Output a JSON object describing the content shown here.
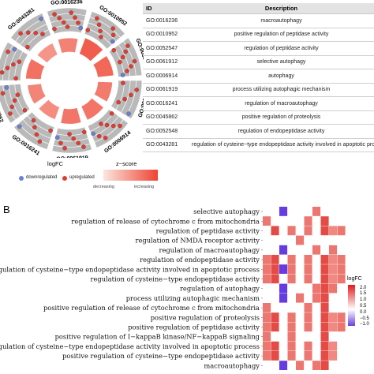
{
  "panel_b_label": "B",
  "colors": {
    "up": "#e8392e",
    "down": "#6a7fd8",
    "table_header": "#e3e3e3",
    "z_low": "#fbe6df",
    "z_high": "#ee4433",
    "heat_high": "#e31a1c",
    "heat_low": "#6a3fe0"
  },
  "table": {
    "headers": [
      "ID",
      "Description"
    ],
    "rows": [
      [
        "GO:0016236",
        "macroautophagy"
      ],
      [
        "GO:0010952",
        "positive regulation of peptidase activity"
      ],
      [
        "GO:0052547",
        "regulation of peptidase activity"
      ],
      [
        "GO:0061912",
        "selective autophagy"
      ],
      [
        "GO:0006914",
        "autophagy"
      ],
      [
        "GO:0061919",
        "process utilizing autophagic mechanism"
      ],
      [
        "GO:0016241",
        "regulation of macroautophagy"
      ],
      [
        "GO:0045862",
        "positive regulation of proteolysis"
      ],
      [
        "GO:0052548",
        "regulation of endopeptidase activity"
      ],
      [
        "GO:0043281",
        "regulation of cysteine−type endopeptidase activity involved in apoptotic process"
      ]
    ]
  },
  "legend": {
    "logfc_title": "logFC",
    "down_label": "downregulated",
    "up_label": "upregulated",
    "z_title": "z−score",
    "z_low_label": "decreasing",
    "z_high_label": "increasing"
  },
  "chart_data": [
    {
      "type": "circular_bar",
      "sectors": [
        {
          "id": "GO:0016236",
          "zscore": 0.62,
          "genes_up": 8,
          "genes_down": 1
        },
        {
          "id": "GO:0010952",
          "zscore": 0.85,
          "genes_up": 7,
          "genes_down": 1
        },
        {
          "id": "GO:0052547",
          "zscore": 0.78,
          "genes_up": 7,
          "genes_down": 2
        },
        {
          "id": "GO:0061912",
          "zscore": 0.66,
          "genes_up": 5,
          "genes_down": 1
        },
        {
          "id": "GO:0006914",
          "zscore": 0.7,
          "genes_up": 7,
          "genes_down": 1
        },
        {
          "id": "GO:0061919",
          "zscore": 0.7,
          "genes_up": 7,
          "genes_down": 1
        },
        {
          "id": "GO:0016241",
          "zscore": 0.55,
          "genes_up": 5,
          "genes_down": 1
        },
        {
          "id": "GO:0045862",
          "zscore": 0.6,
          "genes_up": 6,
          "genes_down": 1
        },
        {
          "id": "GO:0052548",
          "zscore": 0.72,
          "genes_up": 6,
          "genes_down": 1
        },
        {
          "id": "GO:0043281",
          "zscore": 0.5,
          "genes_up": 5,
          "genes_down": 1
        }
      ]
    },
    {
      "type": "heatmap",
      "rows": [
        "selective autophagy",
        "regulation of release of cytochrome c from mitochondria",
        "regulation of peptidase activity",
        "regulation of NMDA receptor activity",
        "regulation of macroautophagy",
        "regulation of endopeptidase activity",
        "regulation of cysteine−type endopeptidase activity involved in apoptotic process",
        "regulation of cysteine−type endopeptidase activity",
        "regulation of autophagy",
        "process utilizing autophagic mechanism",
        "positive regulation of release of cytochrome c from mitochondria",
        "positive regulation of proteolysis",
        "positive regulation of peptidase activity",
        "positive regulation of I−kappaB kinase/NF−kappaB signaling",
        "positive regulation of cysteine−type endopeptidase activity involved in apoptotic process",
        "positive regulation of cysteine−type endopeptidase activity",
        "macroautophagy"
      ],
      "values": [
        [
          null,
          null,
          -1.2,
          null,
          null,
          null,
          1.0,
          null,
          null,
          null,
          null
        ],
        [
          1.0,
          null,
          null,
          null,
          null,
          1.0,
          null,
          1.5,
          null,
          null,
          null
        ],
        [
          null,
          1.5,
          null,
          1.0,
          null,
          1.0,
          null,
          1.5,
          0.8,
          1.0,
          null
        ],
        [
          null,
          null,
          null,
          null,
          1.0,
          null,
          null,
          null,
          null,
          null,
          null
        ],
        [
          null,
          null,
          -1.2,
          null,
          null,
          null,
          1.0,
          null,
          1.0,
          null,
          null
        ],
        [
          1.0,
          1.5,
          null,
          1.0,
          null,
          1.0,
          null,
          1.5,
          0.8,
          1.0,
          null
        ],
        [
          1.0,
          1.5,
          -1.2,
          1.0,
          null,
          1.0,
          null,
          1.5,
          0.8,
          1.0,
          null
        ],
        [
          1.0,
          1.5,
          null,
          1.0,
          null,
          1.0,
          null,
          1.5,
          0.8,
          1.0,
          null
        ],
        [
          null,
          null,
          -1.2,
          null,
          null,
          null,
          1.0,
          1.5,
          1.0,
          null,
          null
        ],
        [
          null,
          null,
          -1.2,
          null,
          1.0,
          null,
          1.0,
          1.5,
          null,
          null,
          null
        ],
        [
          1.0,
          null,
          null,
          null,
          null,
          1.0,
          null,
          1.5,
          null,
          null,
          null
        ],
        [
          1.0,
          1.5,
          null,
          1.0,
          null,
          1.0,
          null,
          1.5,
          0.8,
          1.0,
          null
        ],
        [
          1.0,
          1.5,
          null,
          1.0,
          null,
          1.0,
          null,
          1.5,
          0.8,
          1.0,
          null
        ],
        [
          1.0,
          null,
          null,
          1.0,
          null,
          null,
          null,
          1.5,
          null,
          null,
          null
        ],
        [
          1.0,
          1.5,
          null,
          1.0,
          null,
          1.0,
          null,
          1.5,
          0.8,
          null,
          null
        ],
        [
          1.0,
          1.5,
          null,
          1.0,
          null,
          1.0,
          null,
          1.5,
          0.8,
          null,
          null
        ],
        [
          null,
          null,
          -1.2,
          null,
          1.0,
          null,
          1.0,
          1.5,
          null,
          null,
          null
        ]
      ],
      "legend_title": "logFC",
      "legend_ticks": [
        "2.0",
        "1.5",
        "1.0",
        "0.5",
        "0.0",
        "−0.5",
        "−1.0"
      ],
      "range": [
        -1.2,
        2.0
      ]
    }
  ]
}
